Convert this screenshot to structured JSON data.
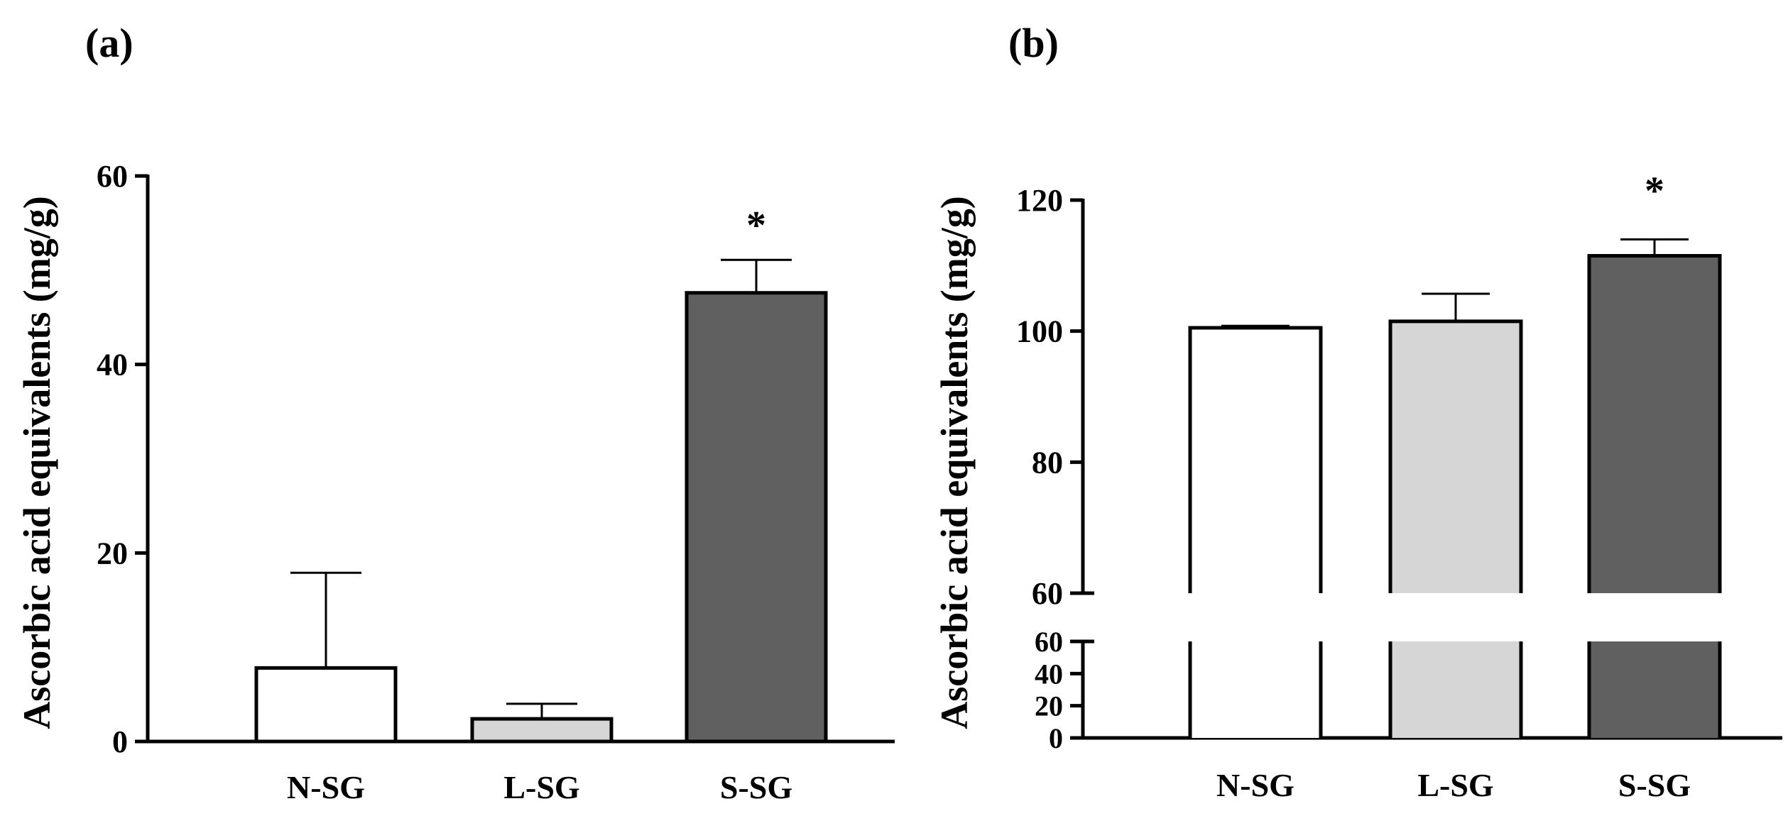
{
  "chart_data": [
    {
      "panel_label": "(a)",
      "type": "bar",
      "categories": [
        "N-SG",
        "L-SG",
        "S-SG"
      ],
      "values": [
        7.8,
        2.4,
        47.6
      ],
      "errors": [
        10.1,
        1.6,
        3.5
      ],
      "bar_colors": [
        "#ffffff",
        "#d6d6d6",
        "#606060"
      ],
      "significance": [
        "",
        "",
        "*"
      ],
      "ylabel": "Ascorbic acid equivalents (mg/g)",
      "xlabel": "",
      "ylim": [
        0,
        60
      ],
      "yticks": [
        0,
        20,
        40,
        60
      ],
      "grid": false
    },
    {
      "panel_label": "(b)",
      "type": "bar",
      "categories": [
        "N-SG",
        "L-SG",
        "S-SG"
      ],
      "values": [
        100.5,
        101.5,
        111.5
      ],
      "errors": [
        0.3,
        4.2,
        2.5
      ],
      "bar_colors": [
        "#ffffff",
        "#d6d6d6",
        "#606060"
      ],
      "significance": [
        "",
        "",
        "*"
      ],
      "ylabel": "Ascorbic acid equivalents (mg/g)",
      "xlabel": "",
      "broken_axis": true,
      "ylim_lower": [
        0,
        60
      ],
      "yticks_lower": [
        0,
        20,
        40,
        60
      ],
      "ylim_upper": [
        60,
        120
      ],
      "yticks_upper": [
        60,
        80,
        100,
        120
      ],
      "grid": false
    }
  ]
}
